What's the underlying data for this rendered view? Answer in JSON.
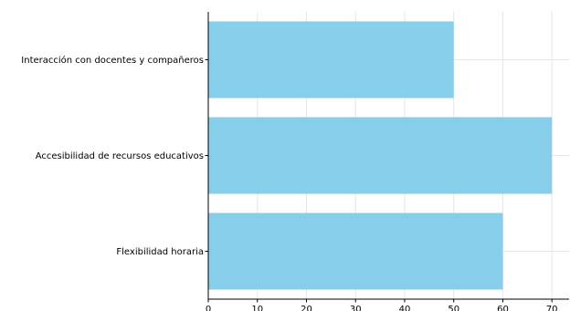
{
  "chart_data": {
    "type": "bar",
    "orientation": "horizontal",
    "title": "",
    "xlabel": "",
    "ylabel": "",
    "categories": [
      "Flexibilidad horaria",
      "Accesibilidad de recursos educativos",
      "Interacción con docentes y compañeros"
    ],
    "values": [
      60,
      70,
      50
    ],
    "xlim": [
      0,
      73.5
    ],
    "xticks": [
      0,
      10,
      20,
      30,
      40,
      50,
      60,
      70
    ],
    "grid": true,
    "legend": "none",
    "bar_color": "#87CEEB",
    "grid_color": "#e6e6e6"
  }
}
